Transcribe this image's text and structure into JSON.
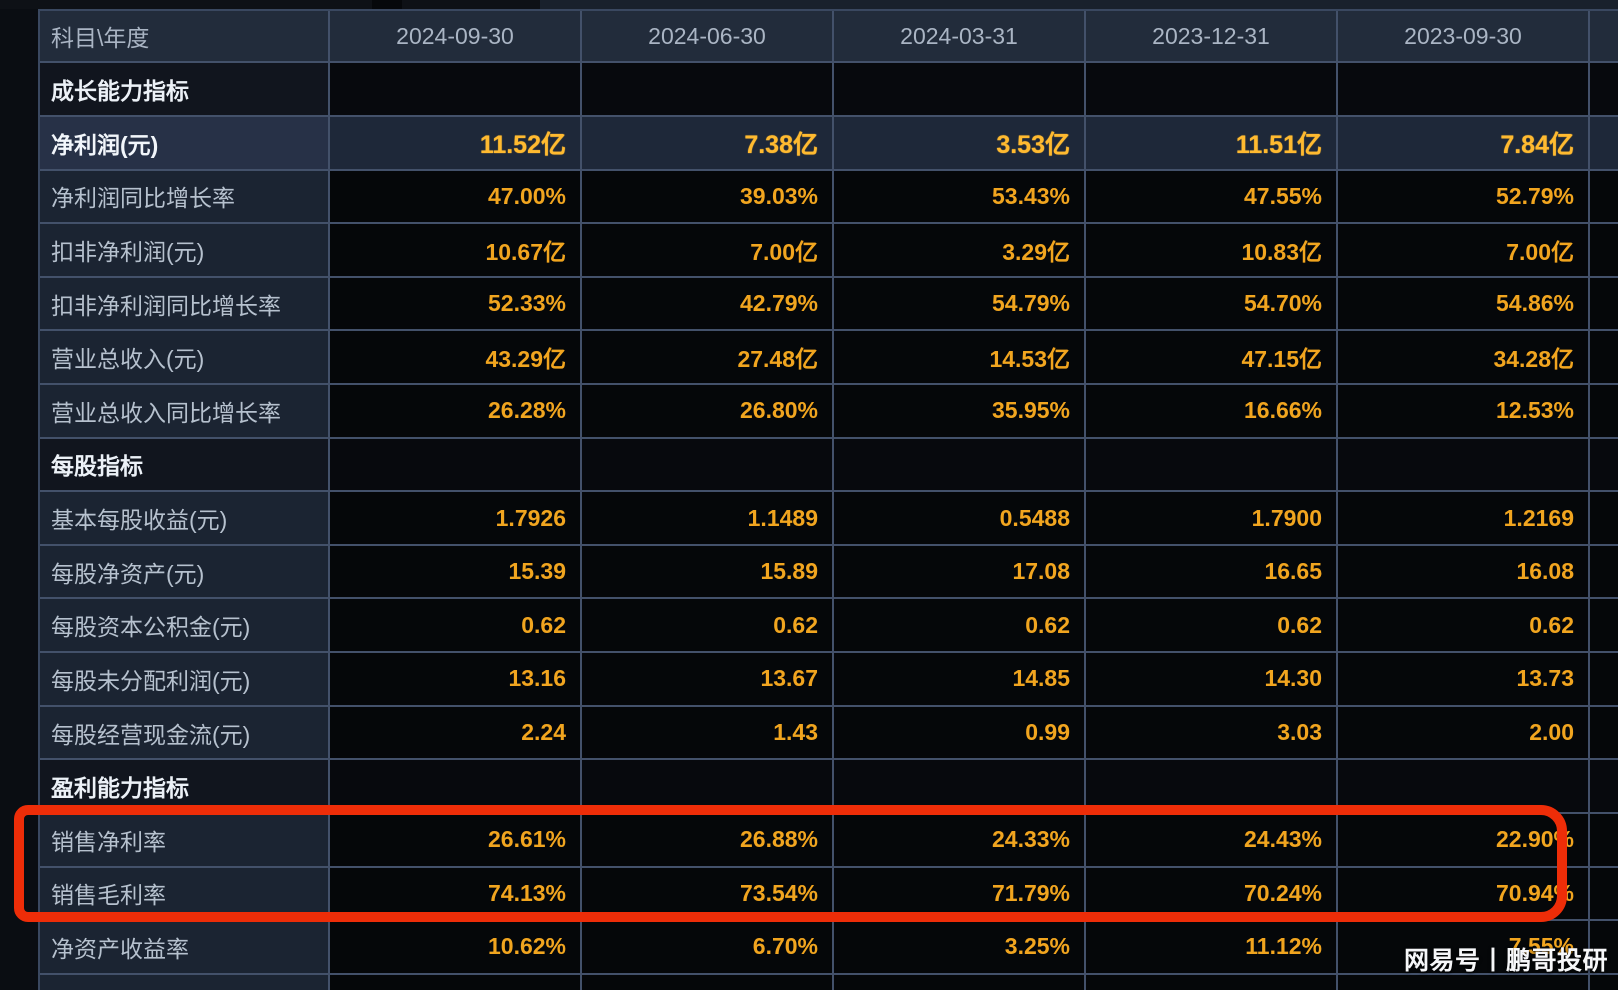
{
  "table": {
    "corner_label": "科目\\年度",
    "columns": [
      "2024-09-30",
      "2024-06-30",
      "2024-03-31",
      "2023-12-31",
      "2023-09-30"
    ],
    "rows": [
      {
        "label": "成长能力指标",
        "type": "section",
        "values": [
          "",
          "",
          "",
          "",
          ""
        ]
      },
      {
        "label": "净利润(元)",
        "type": "highlight",
        "values": [
          "11.52亿",
          "7.38亿",
          "3.53亿",
          "11.51亿",
          "7.84亿"
        ]
      },
      {
        "label": "净利润同比增长率",
        "type": "data",
        "values": [
          "47.00%",
          "39.03%",
          "53.43%",
          "47.55%",
          "52.79%"
        ]
      },
      {
        "label": "扣非净利润(元)",
        "type": "data",
        "values": [
          "10.67亿",
          "7.00亿",
          "3.29亿",
          "10.83亿",
          "7.00亿"
        ]
      },
      {
        "label": "扣非净利润同比增长率",
        "type": "data",
        "values": [
          "52.33%",
          "42.79%",
          "54.79%",
          "54.70%",
          "54.86%"
        ]
      },
      {
        "label": "营业总收入(元)",
        "type": "data",
        "values": [
          "43.29亿",
          "27.48亿",
          "14.53亿",
          "47.15亿",
          "34.28亿"
        ]
      },
      {
        "label": "营业总收入同比增长率",
        "type": "data",
        "values": [
          "26.28%",
          "26.80%",
          "35.95%",
          "16.66%",
          "12.53%"
        ]
      },
      {
        "label": "每股指标",
        "type": "section",
        "values": [
          "",
          "",
          "",
          "",
          ""
        ]
      },
      {
        "label": "基本每股收益(元)",
        "type": "data",
        "values": [
          "1.7926",
          "1.1489",
          "0.5488",
          "1.7900",
          "1.2169"
        ]
      },
      {
        "label": "每股净资产(元)",
        "type": "data",
        "values": [
          "15.39",
          "15.89",
          "17.08",
          "16.65",
          "16.08"
        ]
      },
      {
        "label": "每股资本公积金(元)",
        "type": "data",
        "values": [
          "0.62",
          "0.62",
          "0.62",
          "0.62",
          "0.62"
        ]
      },
      {
        "label": "每股未分配利润(元)",
        "type": "data",
        "values": [
          "13.16",
          "13.67",
          "14.85",
          "14.30",
          "13.73"
        ]
      },
      {
        "label": "每股经营现金流(元)",
        "type": "data",
        "values": [
          "2.24",
          "1.43",
          "0.99",
          "3.03",
          "2.00"
        ]
      },
      {
        "label": "盈利能力指标",
        "type": "section",
        "values": [
          "",
          "",
          "",
          "",
          ""
        ]
      },
      {
        "label": "销售净利率",
        "type": "data",
        "values": [
          "26.61%",
          "26.88%",
          "24.33%",
          "24.43%",
          "22.90%"
        ]
      },
      {
        "label": "销售毛利率",
        "type": "data",
        "values": [
          "74.13%",
          "73.54%",
          "71.79%",
          "70.24%",
          "70.94%"
        ]
      },
      {
        "label": "净资产收益率",
        "type": "data",
        "values": [
          "10.62%",
          "6.70%",
          "3.25%",
          "11.12%",
          "7.55%"
        ]
      },
      {
        "label": "",
        "type": "data",
        "values": [
          "",
          "",
          "",
          "",
          ""
        ]
      }
    ]
  },
  "annotation": {
    "shape": "rounded-rectangle",
    "color": "#ee2d08",
    "marked_rows": [
      "销售净利率",
      "销售毛利率"
    ]
  },
  "watermark": {
    "text": "网易号丨鹏哥投研"
  },
  "colors": {
    "value_orange": "#f1a51f",
    "highlight_orange": "#ffba30",
    "header_background": "#222c3b",
    "label_background": "#1b2432",
    "highlight_row_background": "#1e2839",
    "grid_line": "#43516a",
    "annotation_red": "#ee2d08"
  }
}
